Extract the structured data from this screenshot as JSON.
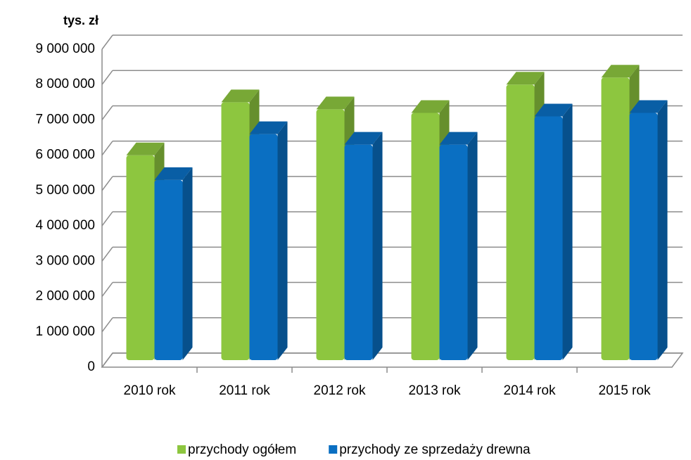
{
  "chart_data": {
    "type": "bar3d",
    "axis_label": "tys. zł",
    "categories": [
      "2010 rok",
      "2011 rok",
      "2012 rok",
      "2013 rok",
      "2014 rok",
      "2015 rok"
    ],
    "series": [
      {
        "name": "przychody ogółem",
        "color": "#8dc63f",
        "values": [
          5800000,
          7300000,
          7100000,
          7000000,
          7800000,
          8000000
        ]
      },
      {
        "name": "przychody ze sprzedaży drewna",
        "color": "#0a6fc2",
        "values": [
          5100000,
          6400000,
          6100000,
          6100000,
          6900000,
          7000000
        ]
      }
    ],
    "ylim": [
      0,
      9000000
    ],
    "yticks": [
      0,
      {
        "value": 1000000,
        "label": "1 000 000"
      },
      {
        "value": 2000000,
        "label": "2 000 000"
      },
      {
        "value": 3000000,
        "label": "3 000 000"
      },
      {
        "value": 4000000,
        "label": "4 000 000"
      },
      {
        "value": 5000000,
        "label": "5 000 000"
      },
      {
        "value": 6000000,
        "label": "6 000 000"
      },
      {
        "value": 7000000,
        "label": "7 000 000"
      },
      {
        "value": 8000000,
        "label": "8 000 000"
      },
      {
        "value": 9000000,
        "label": "9 000 000"
      }
    ],
    "grid": true
  }
}
